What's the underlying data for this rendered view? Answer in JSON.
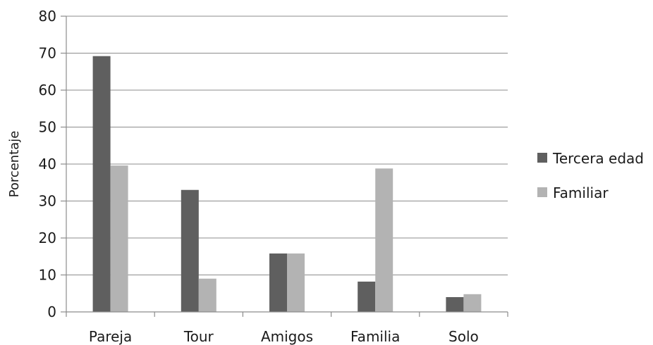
{
  "chart_data": {
    "type": "bar",
    "title": "",
    "xlabel": "",
    "ylabel": "Porcentaje",
    "ylim": [
      0,
      80
    ],
    "yticks": [
      0,
      10,
      20,
      30,
      40,
      50,
      60,
      70,
      80
    ],
    "grid": true,
    "legend_position": "right",
    "categories": [
      "Pareja",
      "Tour",
      "Amigos",
      "Familia",
      "Solo"
    ],
    "series": [
      {
        "name": "Tercera edad",
        "color": "#5f5f5f",
        "values": [
          69.2,
          33,
          15.8,
          8.2,
          4
        ]
      },
      {
        "name": "Familiar",
        "color": "#b3b3b3",
        "values": [
          39.6,
          9,
          15.8,
          38.8,
          4.8
        ]
      }
    ]
  }
}
